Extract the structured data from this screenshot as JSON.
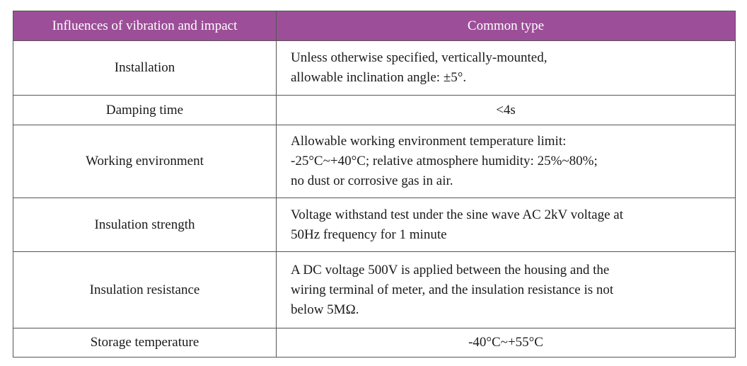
{
  "table": {
    "header": [
      "Influences of vibration and impact",
      "Common type"
    ],
    "rows": [
      [
        "Installation",
        [
          "Unless otherwise specified, vertically-mounted,",
          "allowable inclination angle: ±5°."
        ]
      ],
      [
        "Damping time",
        [
          "<4s"
        ]
      ],
      [
        "Working environment",
        [
          "Allowable working environment temperature limit:",
          "-25°C~+40°C; relative atmosphere humidity: 25%~80%;",
          "no dust or corrosive gas in air."
        ]
      ],
      [
        "Insulation strength",
        [
          "Voltage withstand test under the sine wave AC 2kV voltage at",
          "50Hz frequency for 1 minute"
        ]
      ],
      [
        "Insulation resistance",
        [
          "A DC voltage 500V is applied between the housing and the",
          "wiring terminal of meter, and the insulation resistance is not",
          "below 5MΩ."
        ]
      ],
      [
        "Storage temperature",
        [
          "-40°C~+55°C"
        ]
      ]
    ]
  }
}
